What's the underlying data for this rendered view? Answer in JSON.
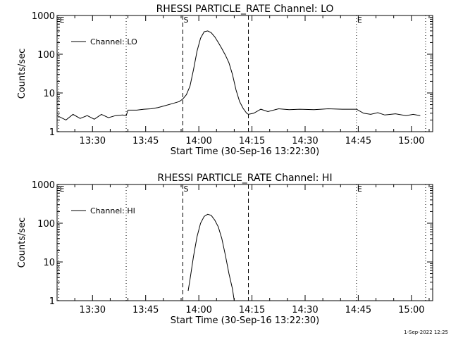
{
  "chart_data": [
    {
      "type": "line",
      "title": "RHESSI PARTICLE_RATE Channel: LO",
      "xlabel": "Start Time (30-Sep-16 13:22:30)",
      "ylabel": "Counts/sec",
      "y_scale": "log",
      "ylim": [
        1,
        1000
      ],
      "y_ticks": [
        1,
        10,
        100,
        1000
      ],
      "y_tick_labels": [
        "1",
        "10",
        "100",
        "1000"
      ],
      "xlim_minutes": [
        -2.5,
        103.5
      ],
      "x_ticks": [
        7.5,
        22.5,
        37.5,
        52.5,
        67.5,
        82.5,
        97.5
      ],
      "x_tick_labels": [
        "13:30",
        "13:45",
        "14:00",
        "14:15",
        "14:30",
        "14:45",
        "15:00"
      ],
      "legend": {
        "label": "Channel: LO",
        "position": "top-left"
      },
      "markers": [
        {
          "label": "E",
          "x": -2.0,
          "style": "dotted"
        },
        {
          "label": "",
          "x": 17.0,
          "style": "dotted"
        },
        {
          "label": "S",
          "x": 33.0,
          "style": "dashed"
        },
        {
          "label": "",
          "x": 51.5,
          "style": "dashed"
        },
        {
          "label": "E",
          "x": 82.0,
          "style": "dotted"
        },
        {
          "label": "",
          "x": 101.5,
          "style": "dotted"
        }
      ],
      "series": [
        {
          "name": "Channel: LO",
          "x": [
            -2.5,
            0,
            2,
            4,
            6,
            8,
            10,
            12,
            14,
            16,
            17,
            17.5,
            20,
            22,
            24,
            26,
            28,
            30,
            32,
            33,
            34,
            35,
            36,
            37,
            38,
            39,
            40,
            41,
            42,
            43,
            44,
            45,
            46,
            47,
            48,
            49,
            50,
            51,
            51.5,
            53,
            55,
            57,
            60,
            63,
            66,
            70,
            74,
            78,
            82,
            84,
            86,
            88,
            90,
            93,
            96,
            98,
            100
          ],
          "y": [
            2.6,
            2.0,
            2.8,
            2.2,
            2.6,
            2.1,
            2.8,
            2.3,
            2.6,
            2.7,
            2.6,
            3.6,
            3.6,
            3.8,
            3.9,
            4.2,
            4.7,
            5.3,
            6.0,
            7.0,
            9.0,
            15,
            40,
            120,
            260,
            380,
            400,
            360,
            280,
            200,
            140,
            95,
            60,
            30,
            12,
            6,
            4,
            3,
            2.8,
            3.0,
            3.8,
            3.3,
            3.9,
            3.7,
            3.8,
            3.7,
            3.9,
            3.8,
            3.8,
            3.0,
            2.8,
            3.1,
            2.7,
            2.9,
            2.6,
            2.8,
            2.6
          ]
        }
      ]
    },
    {
      "type": "line",
      "title": "RHESSI PARTICLE_RATE Channel: HI",
      "xlabel": "Start Time (30-Sep-16 13:22:30)",
      "ylabel": "Counts/sec",
      "y_scale": "log",
      "ylim": [
        1,
        1000
      ],
      "y_ticks": [
        1,
        10,
        100,
        1000
      ],
      "y_tick_labels": [
        "1",
        "10",
        "100",
        "1000"
      ],
      "xlim_minutes": [
        -2.5,
        103.5
      ],
      "x_ticks": [
        7.5,
        22.5,
        37.5,
        52.5,
        67.5,
        82.5,
        97.5
      ],
      "x_tick_labels": [
        "13:30",
        "13:45",
        "14:00",
        "14:15",
        "14:30",
        "14:45",
        "15:00"
      ],
      "legend": {
        "label": "Channel: HI",
        "position": "top-left"
      },
      "markers": [
        {
          "label": "E",
          "x": -2.0,
          "style": "dotted"
        },
        {
          "label": "",
          "x": 17.0,
          "style": "dotted"
        },
        {
          "label": "S",
          "x": 33.0,
          "style": "dashed"
        },
        {
          "label": "",
          "x": 51.5,
          "style": "dashed"
        },
        {
          "label": "E",
          "x": 82.0,
          "style": "dotted"
        },
        {
          "label": "",
          "x": 101.5,
          "style": "dotted"
        }
      ],
      "series": [
        {
          "name": "Channel: HI",
          "x": [
            34.5,
            35,
            36,
            37,
            38,
            39,
            40,
            41,
            42,
            43,
            44,
            45,
            46,
            47,
            47.5
          ],
          "y": [
            1.8,
            3.5,
            14,
            45,
            100,
            150,
            170,
            160,
            120,
            80,
            40,
            15,
            5,
            2,
            1
          ]
        }
      ]
    }
  ],
  "footer": {
    "timestamp": "1-Sep-2022 12:25"
  }
}
